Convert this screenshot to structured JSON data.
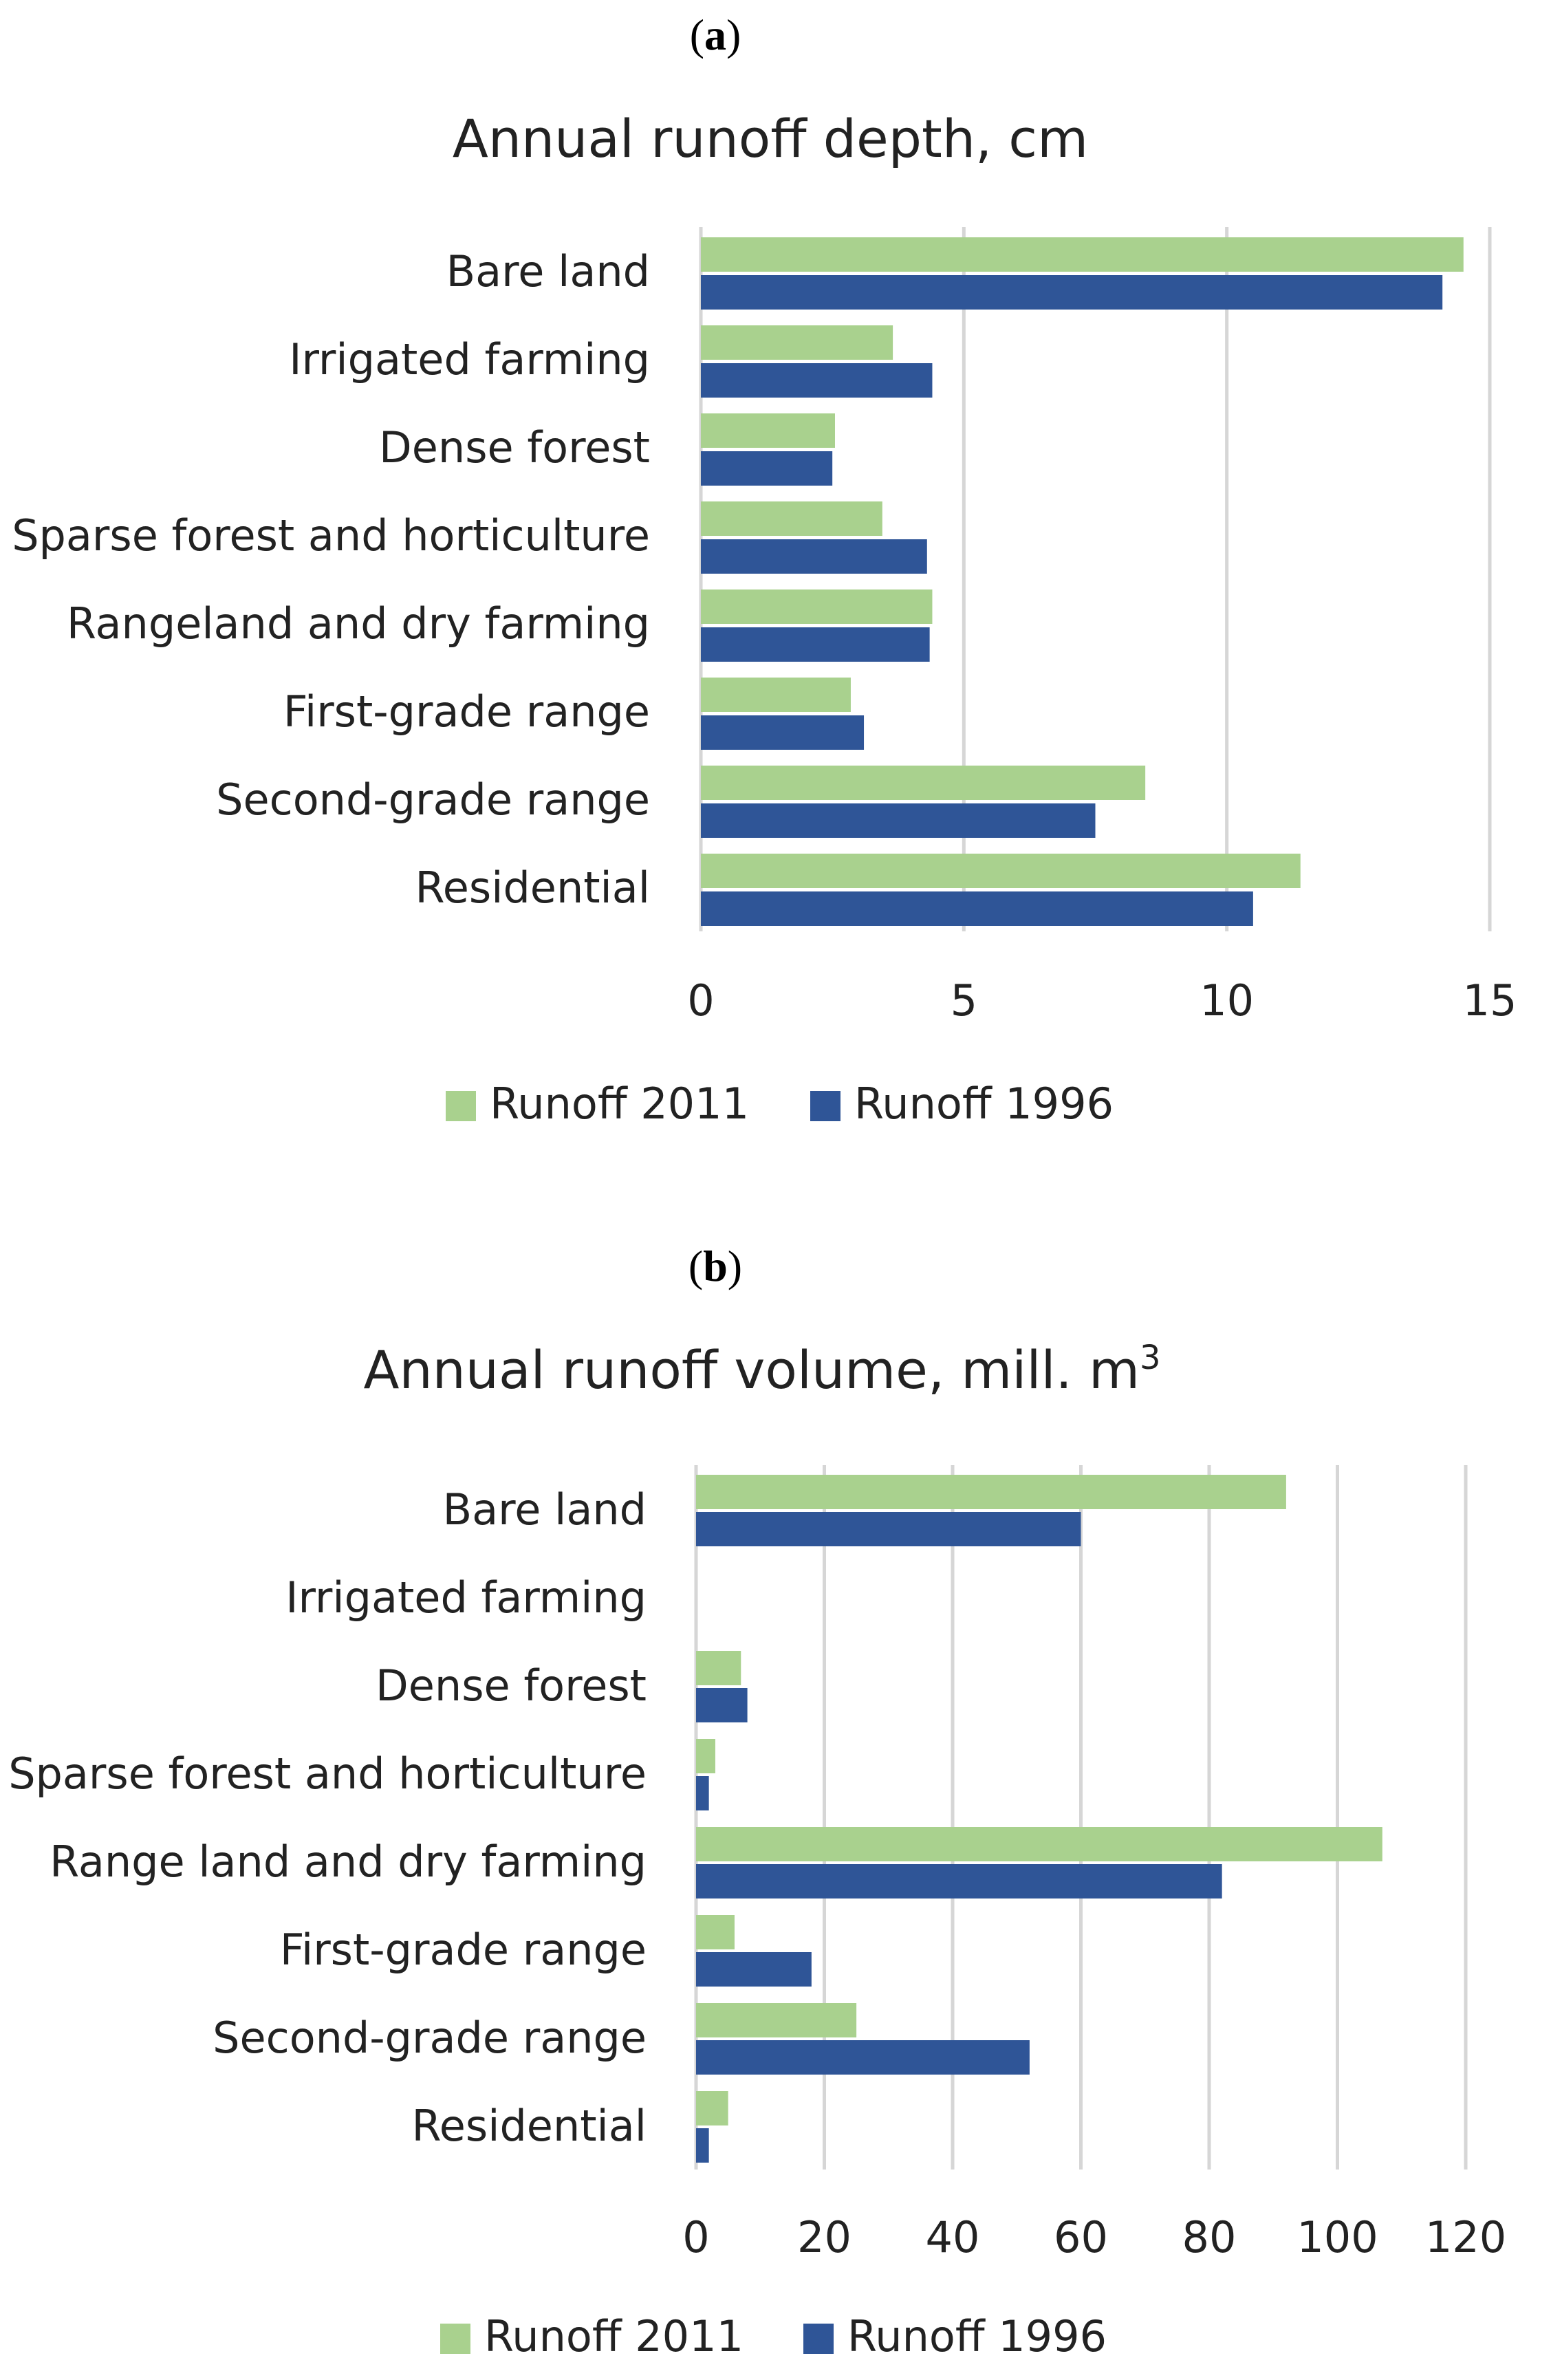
{
  "chart_data": [
    {
      "type": "bar",
      "orientation": "horizontal",
      "panel_label": "a",
      "title": "Annual runoff depth, cm",
      "title_sup": "",
      "categories": [
        "Bare land",
        "Irrigated farming",
        "Dense forest",
        "Sparse forest and horticulture",
        "Rangeland and dry farming",
        "First-grade range",
        "Second-grade range",
        "Residential"
      ],
      "series": [
        {
          "name": "Runoff 2011",
          "color": "#a9d18e",
          "values": [
            14.5,
            3.65,
            2.55,
            3.45,
            4.4,
            2.85,
            8.45,
            11.4
          ]
        },
        {
          "name": "Runoff 1996",
          "color": "#2f5597",
          "values": [
            14.1,
            4.4,
            2.5,
            4.3,
            4.35,
            3.1,
            7.5,
            10.5
          ]
        }
      ],
      "xlim": [
        0,
        15
      ],
      "ticks": [
        0,
        5,
        10,
        15
      ],
      "tick_labels": [
        "0",
        "5",
        "10",
        "15"
      ],
      "grid": true,
      "legend": "bottom"
    },
    {
      "type": "bar",
      "orientation": "horizontal",
      "panel_label": "b",
      "title": "Annual runoff volume, mill. m",
      "title_sup": "3",
      "categories": [
        "Bare land",
        "Irrigated farming",
        "Dense forest",
        "Sparse forest and horticulture",
        "Range land and dry farming",
        "First-grade range",
        "Second-grade range",
        "Residential"
      ],
      "series": [
        {
          "name": "Runoff 2011",
          "color": "#a9d18e",
          "values": [
            92,
            0,
            7,
            3,
            107,
            6,
            25,
            5
          ]
        },
        {
          "name": "Runoff 1996",
          "color": "#2f5597",
          "values": [
            60,
            0,
            8,
            2,
            82,
            18,
            52,
            2
          ]
        }
      ],
      "xlim": [
        0,
        120
      ],
      "ticks": [
        0,
        20,
        40,
        60,
        80,
        100,
        120
      ],
      "tick_labels": [
        "0",
        "20",
        "40",
        "60",
        "80",
        "100",
        "120"
      ],
      "grid": true,
      "legend": "bottom"
    }
  ]
}
